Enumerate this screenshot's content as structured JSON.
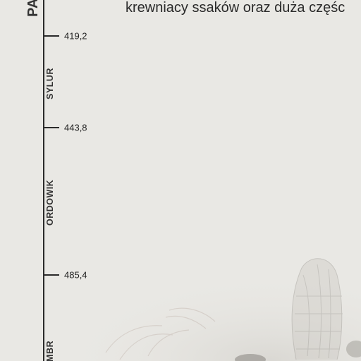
{
  "era": {
    "label": "PA"
  },
  "heading": {
    "text": "krewniacy ssaków oraz duża częśc"
  },
  "periods": [
    {
      "label": "SYLUR"
    },
    {
      "label": "ORDOWIK"
    },
    {
      "label": "KAMBR"
    }
  ],
  "ticks": [
    {
      "value": "419,2"
    },
    {
      "value": "443,8"
    },
    {
      "value": "485,4"
    }
  ],
  "colors": {
    "background": "#e9e8e4",
    "line": "#2a2a2a",
    "text": "#2a2a2a"
  }
}
